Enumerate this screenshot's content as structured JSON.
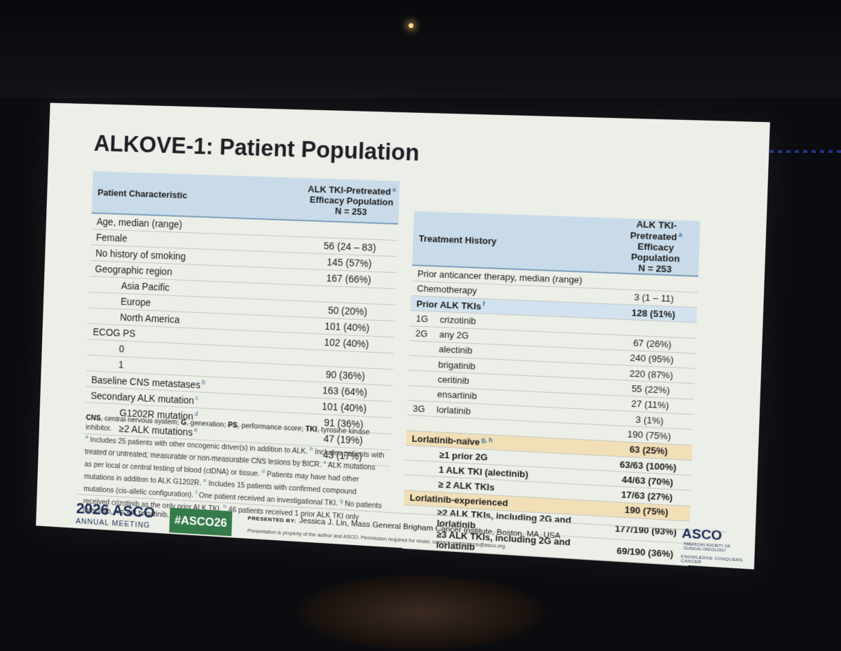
{
  "slide": {
    "title": "ALKOVE-1: Patient Population",
    "left_table": {
      "header_col1": "Patient Characteristic",
      "header_col2_line1": "ALK TKI-Pretreated",
      "header_col2_mark": "a",
      "header_col2_line2": "Efficacy Population",
      "header_col2_line3": "N = 253",
      "rows": [
        {
          "label": "Age, median (range)",
          "value": ""
        },
        {
          "label": "Female",
          "value": "56 (24 – 83)"
        },
        {
          "label": "No history of smoking",
          "value": "145 (57%)"
        },
        {
          "label": "Geographic region",
          "value": "167 (66%)"
        },
        {
          "label": "Asia Pacific",
          "value": ""
        },
        {
          "label": "Europe",
          "value": "50 (20%)"
        },
        {
          "label": "North America",
          "value": "101 (40%)"
        },
        {
          "label": "ECOG PS",
          "value": "102 (40%)"
        },
        {
          "label": "0",
          "value": ""
        },
        {
          "label": "1",
          "value": "90 (36%)"
        },
        {
          "label": "Baseline CNS metastases",
          "mark": "b",
          "value": "163 (64%)"
        },
        {
          "label": "Secondary ALK mutation",
          "mark": "c",
          "value": "101 (40%)"
        },
        {
          "label": "G1202R mutation",
          "mark": "d",
          "value": "91 (36%)"
        },
        {
          "label": "≥2 ALK mutations",
          "mark": "e",
          "value": "47 (19%)"
        },
        {
          "label": "",
          "value": "43 (17%)"
        }
      ]
    },
    "right_table": {
      "header_col1": "Treatment History",
      "header_col2_line1": "ALK TKI-Pretreated",
      "header_col2_mark": "a",
      "header_col2_line2": "Efficacy Population",
      "header_col2_line3": "N = 253",
      "rows": [
        {
          "gen": "",
          "label": "Prior anticancer therapy, median (range)",
          "value": ""
        },
        {
          "gen": "",
          "label": "Chemotherapy",
          "value": "3 (1 – 11)"
        },
        {
          "gen": "",
          "label": "Prior ALK TKIs",
          "mark": "f",
          "value": "128 (51%)"
        },
        {
          "gen": "1G",
          "label": "crizotinib",
          "value": ""
        },
        {
          "gen": "2G",
          "label": "any 2G",
          "value": "67 (26%)"
        },
        {
          "gen": "",
          "label": "alectinib",
          "value": "240 (95%)"
        },
        {
          "gen": "",
          "label": "brigatinib",
          "value": "220 (87%)"
        },
        {
          "gen": "",
          "label": "ceritinib",
          "value": "55 (22%)"
        },
        {
          "gen": "",
          "label": "ensartinib",
          "value": "27 (11%)"
        },
        {
          "gen": "3G",
          "label": "lorlatinib",
          "value": "3 (1%)"
        },
        {
          "gen": "",
          "label": "",
          "value": "190 (75%)"
        },
        {
          "gen": "",
          "label": "Lorlatinib-naïve",
          "mark": "g, h",
          "value": "63 (25%)"
        },
        {
          "gen": "",
          "label": "≥1 prior 2G",
          "value": "63/63 (100%)"
        },
        {
          "gen": "",
          "label": "1 ALK TKI (alectinib)",
          "value": "44/63 (70%)"
        },
        {
          "gen": "",
          "label": "≥ 2 ALK TKIs",
          "value": "17/63 (27%)"
        },
        {
          "gen": "",
          "label": "Lorlatinib-experienced",
          "value": "190 (75%)"
        },
        {
          "gen": "",
          "label": "≥2 ALK TKIs, including 2G and lorlatinib",
          "value": "177/190 (93%)"
        },
        {
          "gen": "",
          "label": "≥3 ALK TKIs, including 2G and lorlatinib",
          "value": "69/190 (36%)"
        }
      ]
    },
    "footnotes": {
      "abbr_cns": "CNS",
      "abbr_cns_def": ", central nervous system; ",
      "abbr_g": "G",
      "abbr_g_def": ", generation; ",
      "abbr_ps": "PS",
      "abbr_ps_def": ", performance score; ",
      "abbr_tki": "TKI",
      "abbr_tki_def": ", tyrosine kinase inhibitor.",
      "a_text": " Includes 25 patients with other oncogenic driver(s) in addition to ALK. ",
      "b_text": " Includes patients with treated or untreated, measurable or non-measurable CNS lesions by BICR. ",
      "c_text": " ALK mutations as per local or central testing of blood (ctDNA) or tissue. ",
      "d_text": " Patients may have had other mutations in addition to ALK G1202R. ",
      "e_text": " Includes 15 patients with confirmed compound mutations (cis-allelic configuration). ",
      "f_text": " One patient received an investigational TKI. ",
      "g_text": " No patients received crizotinib as the only prior ALK TKI. ",
      "h_text": " 46 patients received 1 prior ALK TKI only (alectinib, n = 44; brigatinib, n = 2)."
    },
    "footer": {
      "meeting_year": "2026 ASCO",
      "meeting_name": "ANNUAL MEETING",
      "hashtag": "#ASCO26",
      "presented_by_label": "PRESENTED BY:",
      "presenter": "Jessica J. Lin, Mass General Brigham Cancer Institute, Boston, MA, USA",
      "permission": "Presentation is property of the author and ASCO. Permission required for reuse; contact permissions@asco.org.",
      "logo_main": "ASCO",
      "logo_small_1": "AMERICAN SOCIETY OF",
      "logo_small_2": "CLINICAL ONCOLOGY",
      "logo_tagline": "KNOWLEDGE CONQUERS CANCER"
    }
  }
}
